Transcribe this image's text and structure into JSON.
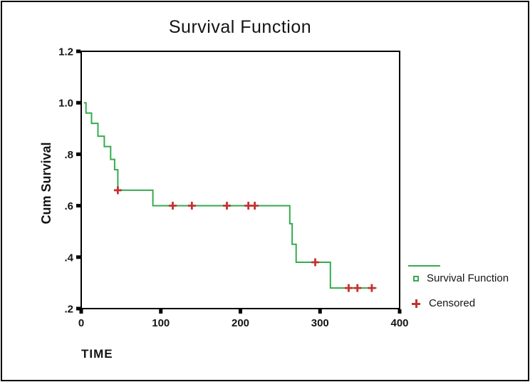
{
  "chart_data": {
    "type": "line",
    "subtype": "kaplan-meier-step",
    "title": "Survival Function",
    "xlabel": "TIME",
    "ylabel": "Cum Survival",
    "xlim": [
      0,
      400
    ],
    "ylim": [
      0.2,
      1.2
    ],
    "xticks": [
      0,
      100,
      200,
      300,
      400
    ],
    "xtick_labels": [
      "0",
      "100",
      "200",
      "300",
      "400"
    ],
    "yticks": [
      1.2,
      1.0,
      0.8,
      0.6,
      0.4,
      0.2
    ],
    "ytick_labels": [
      "1.2",
      "1.0",
      ".8",
      ".6",
      ".4",
      ".2"
    ],
    "grid": "off",
    "legend_position": "right-bottom",
    "series": [
      {
        "name": "Survival Function",
        "step_points": [
          [
            3.5,
            1.0
          ],
          [
            6,
            1.0
          ],
          [
            6,
            0.96
          ],
          [
            13,
            0.96
          ],
          [
            13,
            0.92
          ],
          [
            21,
            0.92
          ],
          [
            21,
            0.87
          ],
          [
            29,
            0.87
          ],
          [
            29,
            0.83
          ],
          [
            37,
            0.83
          ],
          [
            37,
            0.78
          ],
          [
            42,
            0.78
          ],
          [
            42,
            0.74
          ],
          [
            46,
            0.74
          ],
          [
            46,
            0.66
          ],
          [
            90,
            0.66
          ],
          [
            90,
            0.6
          ],
          [
            262,
            0.6
          ],
          [
            262,
            0.53
          ],
          [
            265,
            0.53
          ],
          [
            265,
            0.45
          ],
          [
            270,
            0.45
          ],
          [
            270,
            0.38
          ],
          [
            313,
            0.38
          ],
          [
            313,
            0.28
          ],
          [
            371,
            0.28
          ]
        ]
      }
    ],
    "censored_points": [
      [
        46,
        0.66
      ],
      [
        115,
        0.6
      ],
      [
        139,
        0.6
      ],
      [
        183,
        0.6
      ],
      [
        210,
        0.6
      ],
      [
        218,
        0.6
      ],
      [
        294,
        0.38
      ],
      [
        336,
        0.28
      ],
      [
        347,
        0.28
      ],
      [
        365,
        0.28
      ]
    ],
    "legend": [
      {
        "label": "Survival Function",
        "marker": "open-square-with-line"
      },
      {
        "label": "Censored",
        "marker": "plus"
      }
    ],
    "colors": {
      "survival_line": "#35ab4e",
      "censored_marker": "#c23230",
      "axis": "#000000",
      "text": "#141414",
      "background": "#ffffff"
    }
  }
}
